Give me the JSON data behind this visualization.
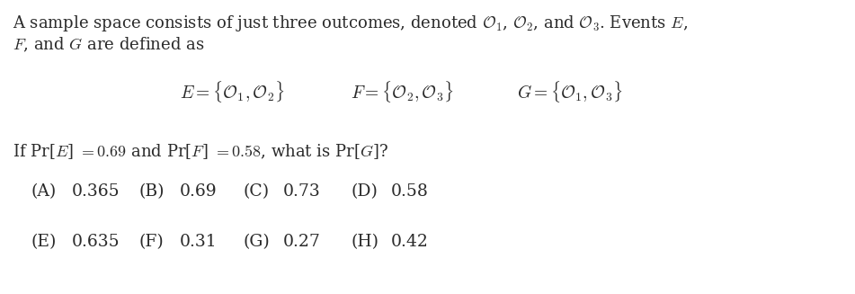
{
  "bg_color": "#ffffff",
  "text_color": "#2a2a2a",
  "figsize": [
    9.51,
    3.27
  ],
  "dpi": 100,
  "line1": "A sample space consists of just three outcomes, denoted $\\mathcal{O}_1$, $\\mathcal{O}_2$, and $\\mathcal{O}_3$. Events $E$,",
  "line2": "$F$, and $G$ are defined as",
  "eq_E": "$E = \\{\\mathcal{O}_1, \\mathcal{O}_2\\}$",
  "eq_F": "$F = \\{\\mathcal{O}_2, \\mathcal{O}_3\\}$",
  "eq_G": "$G = \\{\\mathcal{O}_1, \\mathcal{O}_3\\}$",
  "cond_line": "If Pr[$E$] $= 0.69$ and Pr[$F$] $= 0.58$, what is Pr[$G$]?",
  "answers_row1": [
    [
      "(A)",
      "0.365"
    ],
    [
      "(B)",
      "0.69"
    ],
    [
      "(C)",
      "0.73"
    ],
    [
      "(D)",
      "0.58"
    ]
  ],
  "answers_row2": [
    [
      "(E)",
      "0.635"
    ],
    [
      "(F)",
      "0.31"
    ],
    [
      "(G)",
      "0.27"
    ],
    [
      "(H)",
      "0.42"
    ]
  ],
  "font_size_body": 13,
  "font_size_eq": 14,
  "font_size_ans": 13.5
}
